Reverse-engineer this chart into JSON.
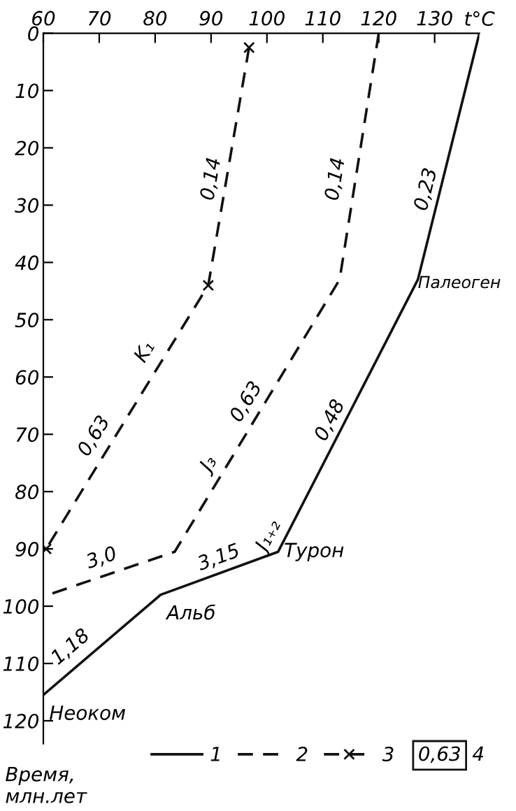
{
  "chart_data": {
    "type": "line",
    "xlabel": "t°C",
    "ylabel": "Время,\nмлн.лет",
    "xlim": [
      60,
      138
    ],
    "xticks": [
      60,
      70,
      80,
      90,
      100,
      110,
      120,
      130
    ],
    "ylim": [
      124,
      0
    ],
    "yticks": [
      0,
      10,
      20,
      30,
      40,
      50,
      60,
      70,
      80,
      90,
      100,
      110,
      120
    ],
    "grid": false,
    "legend": "bottom",
    "series": [
      {
        "name": "1",
        "color": "#111111",
        "line_style": "solid",
        "marker": "none",
        "x": [
          138,
          127,
          102,
          81,
          60
        ],
        "values": [
          0,
          43,
          90.5,
          98,
          115.5
        ]
      },
      {
        "name": "2",
        "color": "#111111",
        "line_style": "dashed",
        "marker": "none",
        "x": [
          120,
          113,
          83.5,
          60
        ],
        "values": [
          0,
          43,
          90.5,
          98.3
        ]
      },
      {
        "name": "3",
        "color": "#111111",
        "line_style": "dashed",
        "marker": "cross",
        "x": [
          96.8,
          89.5,
          60.5
        ],
        "values": [
          2.5,
          44,
          90
        ]
      }
    ],
    "annotations": [
      {
        "text": "0,14",
        "x": 93.8,
        "y": 22
      },
      {
        "text": "0,14",
        "x": 116,
        "y": 22
      },
      {
        "text": "0,23",
        "x": 132.5,
        "y": 24
      },
      {
        "text": "Палеоген",
        "x": 127,
        "y": 43
      },
      {
        "text": "K₁",
        "x": 82,
        "y": 55
      },
      {
        "text": "0,63",
        "x": 74,
        "y": 68
      },
      {
        "text": "0,63",
        "x": 101.2,
        "y": 62
      },
      {
        "text": "0,48",
        "x": 116,
        "y": 65
      },
      {
        "text": "J₃",
        "x": 93.1,
        "y": 75
      },
      {
        "text": "J₁₊₂",
        "x": 104.5,
        "y": 86
      },
      {
        "text": "Турон",
        "x": 102,
        "y": 90.5
      },
      {
        "text": "3,0",
        "x": 71,
        "y": 94.6
      },
      {
        "text": "3,15",
        "x": 92,
        "y": 94.5
      },
      {
        "text": "Альб",
        "x": 81,
        "y": 98
      },
      {
        "text": "1,18",
        "x": 70,
        "y": 107
      },
      {
        "text": "Неоком",
        "x": 60,
        "y": 115.5
      },
      "0,63",
      "4"
    ]
  }
}
